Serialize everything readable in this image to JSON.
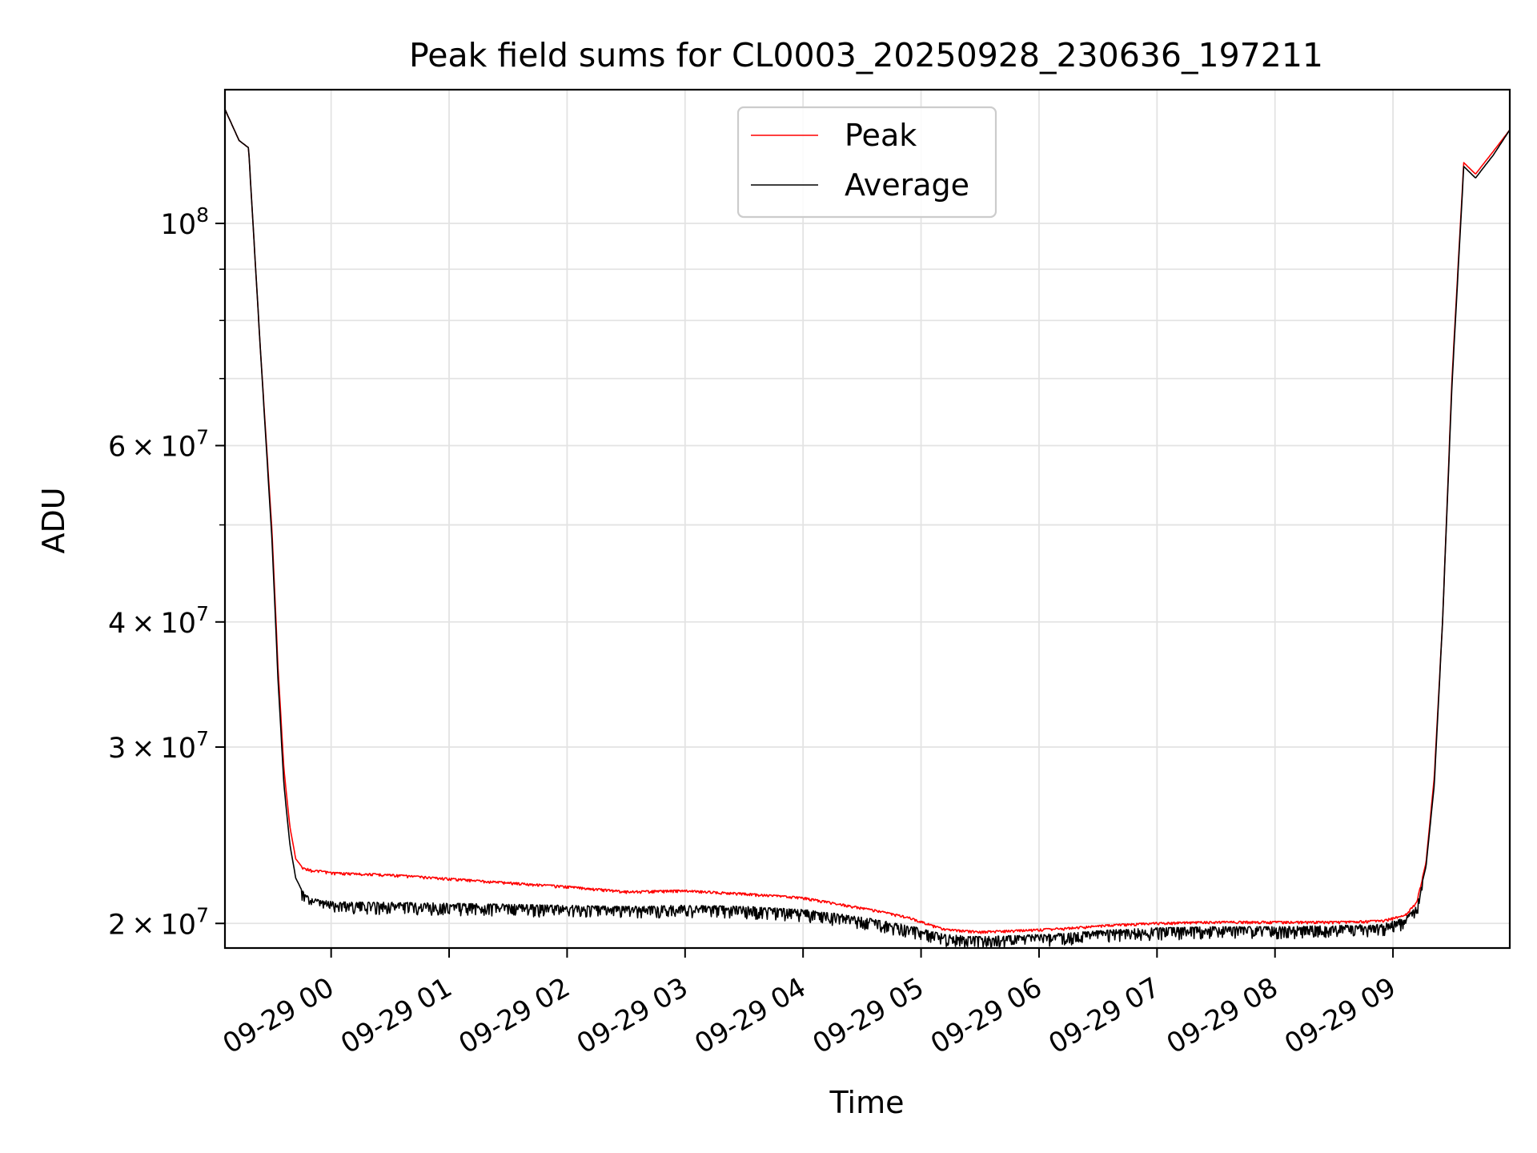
{
  "chart_data": {
    "type": "line",
    "title": "Peak field sums for CL0003_20250928_230636_197211",
    "xlabel": "Time",
    "ylabel": "ADU",
    "x_unit": "hours relative to 2025-09-29 00:00",
    "xlim": [
      -0.9,
      9.99
    ],
    "ylim": [
      18900000,
      136000000
    ],
    "yscale": "log",
    "grid": true,
    "legend_position": "top-center",
    "x_ticks": [
      {
        "x": 0,
        "label": "09-29 00"
      },
      {
        "x": 1,
        "label": "09-29 01"
      },
      {
        "x": 2,
        "label": "09-29 02"
      },
      {
        "x": 3,
        "label": "09-29 03"
      },
      {
        "x": 4,
        "label": "09-29 04"
      },
      {
        "x": 5,
        "label": "09-29 05"
      },
      {
        "x": 6,
        "label": "09-29 06"
      },
      {
        "x": 7,
        "label": "09-29 07"
      },
      {
        "x": 8,
        "label": "09-29 08"
      },
      {
        "x": 9,
        "label": "09-29 09"
      }
    ],
    "y_major_ticks": [
      {
        "y": 100000000,
        "mantissa": "",
        "exponent": "8"
      },
      {
        "y": 60000000,
        "mantissa": "6",
        "exponent": "7"
      },
      {
        "y": 40000000,
        "mantissa": "4",
        "exponent": "7"
      },
      {
        "y": 30000000,
        "mantissa": "3",
        "exponent": "7"
      },
      {
        "y": 20000000,
        "mantissa": "2",
        "exponent": "7"
      }
    ],
    "y_minor_ticks": [
      90000000,
      80000000,
      70000000,
      50000000
    ],
    "series": [
      {
        "name": "Peak",
        "color": "#ff0000",
        "x": [
          -0.9,
          -0.78,
          -0.7,
          -0.6,
          -0.5,
          -0.45,
          -0.4,
          -0.35,
          -0.3,
          -0.25,
          -0.2,
          -0.15,
          -0.1,
          0,
          0.25,
          0.5,
          1,
          1.5,
          2,
          2.5,
          3,
          3.5,
          4,
          4.3,
          4.6,
          4.9,
          5.2,
          5.5,
          5.8,
          6.2,
          6.6,
          7,
          7.5,
          8,
          8.5,
          8.9,
          9.1,
          9.2,
          9.28,
          9.35,
          9.42,
          9.5,
          9.6,
          9.7,
          9.75,
          9.85,
          9.99
        ],
        "y": [
          130000000,
          121000000,
          119000000,
          75000000,
          49000000,
          36000000,
          28500000,
          25000000,
          23200000,
          22800000,
          22700000,
          22600000,
          22600000,
          22500000,
          22450000,
          22400000,
          22200000,
          22000000,
          21800000,
          21550000,
          21600000,
          21450000,
          21250000,
          20950000,
          20650000,
          20300000,
          19750000,
          19650000,
          19700000,
          19800000,
          19950000,
          20050000,
          20100000,
          20100000,
          20100000,
          20150000,
          20400000,
          21000000,
          23000000,
          28000000,
          40000000,
          70000000,
          115000000,
          112000000,
          114000000,
          118000000,
          124000000
        ]
      },
      {
        "name": "Average",
        "color": "#000000",
        "x": [
          -0.9,
          -0.78,
          -0.7,
          -0.6,
          -0.5,
          -0.45,
          -0.4,
          -0.35,
          -0.3,
          -0.25,
          -0.2,
          -0.1,
          0,
          0.25,
          0.5,
          1,
          1.5,
          2,
          2.5,
          3,
          3.5,
          4,
          4.3,
          4.6,
          4.9,
          5.2,
          5.5,
          5.8,
          6.2,
          6.6,
          7,
          7.5,
          8,
          8.5,
          8.9,
          9.1,
          9.2,
          9.28,
          9.35,
          9.42,
          9.5,
          9.6,
          9.7,
          9.75,
          9.85,
          9.99
        ],
        "y": [
          130000000,
          121000000,
          119000000,
          75000000,
          48000000,
          35000000,
          27500000,
          24000000,
          22200000,
          21600000,
          21300000,
          21100000,
          21050000,
          21000000,
          21000000,
          20950000,
          20900000,
          20850000,
          20800000,
          20850000,
          20800000,
          20650000,
          20450000,
          20200000,
          19900000,
          19500000,
          19400000,
          19450000,
          19550000,
          19700000,
          19800000,
          19850000,
          19850000,
          19900000,
          19950000,
          20250000,
          20800000,
          22800000,
          27500000,
          40000000,
          69000000,
          114000000,
          111000000,
          113000000,
          117000000,
          124000000
        ]
      }
    ]
  }
}
